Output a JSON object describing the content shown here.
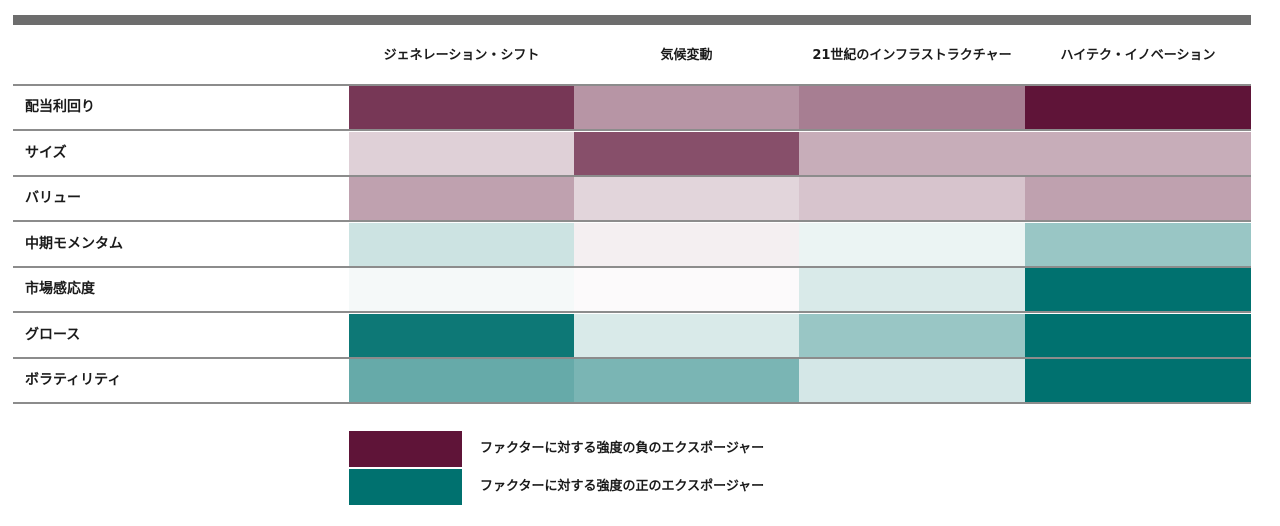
{
  "chart_data": {
    "type": "heatmap",
    "columns": [
      "ジェネレーション・シフト",
      "気候変動",
      "21世紀のインフラストラクチャー",
      "ハイテク・イノベーション"
    ],
    "rows": [
      "配当利回り",
      "サイズ",
      "バリュー",
      "中期モメンタム",
      "市場感応度",
      "グロース",
      "ボラティリティ"
    ],
    "values": [
      [
        -0.85,
        -0.45,
        -0.55,
        -1.0
      ],
      [
        -0.2,
        -0.75,
        -0.35,
        -0.35
      ],
      [
        -0.4,
        -0.18,
        -0.25,
        -0.4
      ],
      [
        0.2,
        -0.07,
        0.08,
        0.4
      ],
      [
        0.04,
        -0.02,
        0.15,
        1.0
      ],
      [
        0.95,
        0.15,
        0.4,
        1.0
      ],
      [
        0.6,
        0.52,
        0.17,
        1.0
      ]
    ],
    "colors": {
      "negative": "#5f1438",
      "neutral": "#ffffff",
      "positive": "#00716f"
    },
    "legend": [
      {
        "label": "ファクターに対する強度の負のエクスポージャー",
        "color": "#5f1438"
      },
      {
        "label": "ファクターに対する強度の正のエクスポージャー",
        "color": "#00716f"
      }
    ]
  }
}
